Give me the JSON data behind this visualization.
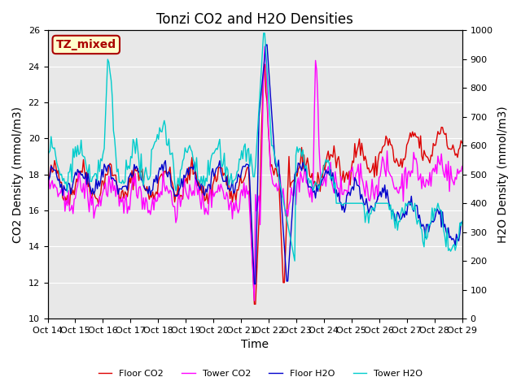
{
  "title": "Tonzi CO2 and H2O Densities",
  "xlabel": "Time",
  "ylabel_left": "CO2 Density (mmol/m3)",
  "ylabel_right": "H2O Density (mmol/m3)",
  "xlim": [
    0,
    15
  ],
  "ylim_left": [
    10,
    26
  ],
  "ylim_right": [
    0,
    1000
  ],
  "xtick_labels": [
    "Oct 14",
    "Oct 15",
    "Oct 16",
    "Oct 17",
    "Oct 18",
    "Oct 19",
    "Oct 20",
    "Oct 21",
    "Oct 22",
    "Oct 23",
    "Oct 24",
    "Oct 25",
    "Oct 26",
    "Oct 27",
    "Oct 28",
    "Oct 29"
  ],
  "annotation_text": "TZ_mixed",
  "annotation_color": "#aa0000",
  "annotation_bg": "#ffffcc",
  "annotation_border": "#aa0000",
  "colors": {
    "floor_co2": "#dd0000",
    "tower_co2": "#ff00ff",
    "floor_h2o": "#0000cc",
    "tower_h2o": "#00cccc"
  },
  "legend_labels": [
    "Floor CO2",
    "Tower CO2",
    "Floor H2O",
    "Tower H2O"
  ],
  "bg_color": "#e8e8e8",
  "title_fontsize": 12,
  "axis_fontsize": 10,
  "tick_fontsize": 8
}
